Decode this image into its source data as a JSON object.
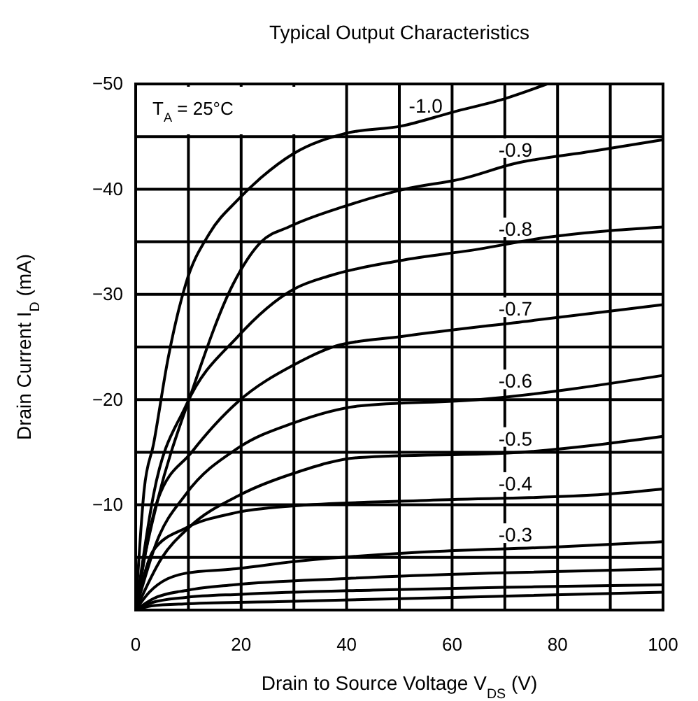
{
  "chart_data": {
    "type": "line",
    "title": "Typical Output Characteristics",
    "xlabel": "Drain to Source Voltage V$_{DS}$ (V)",
    "ylabel": "Drain Current I$_{D}$ (mA)",
    "annotations": [
      "T$_{A}$ = 25°C"
    ],
    "xlim": [
      0,
      100
    ],
    "xticks": [
      0,
      {
        "value": 10,
        "label": null
      },
      20,
      {
        "value": 30,
        "label": null
      },
      40,
      {
        "value": 50,
        "label": null
      },
      60,
      {
        "value": 70,
        "label": null
      },
      80,
      {
        "value": 90,
        "label": null
      },
      100
    ],
    "ylim": [
      0,
      -50
    ],
    "yticks": [
      {
        "value": 0,
        "label": null
      },
      {
        "value": -5,
        "label": null
      },
      -10,
      {
        "value": -15,
        "label": null
      },
      -20,
      {
        "value": -25,
        "label": null
      },
      -30,
      {
        "value": -35,
        "label": null
      },
      -40,
      {
        "value": -45,
        "label": null
      },
      -50
    ],
    "grid": true,
    "legend": false,
    "marker": "none",
    "line_style": "solid",
    "series": [
      {
        "name": "-1.0",
        "color": "#000000",
        "x": [
          0,
          1.6,
          3.4,
          6.1,
          9.5,
          14,
          19.4,
          23.8,
          30,
          39.8,
          50.4,
          60,
          70.6,
          78
        ],
        "values": [
          0,
          -11.4,
          -15.8,
          -23.8,
          -31,
          -35.8,
          -39,
          -41.1,
          -43.4,
          -45.3,
          -46,
          -47.3,
          -48.7,
          -50
        ]
      },
      {
        "name": "-0.9",
        "color": "#000000",
        "x": [
          0,
          1.5,
          4.2,
          10.6,
          18.5,
          23.8,
          29,
          39.8,
          51,
          62,
          71.6,
          86.5,
          100
        ],
        "values": [
          0,
          -4.5,
          -10.5,
          -20.7,
          -31,
          -35,
          -36.4,
          -38.4,
          -40,
          -41,
          -42.4,
          -43.6,
          -44.7
        ]
      },
      {
        "name": "-0.8",
        "color": "#000000",
        "x": [
          0,
          3.4,
          9.5,
          19.4,
          30,
          37,
          50,
          65,
          77.7,
          100
        ],
        "values": [
          0,
          -11,
          -19.4,
          -26,
          -30.5,
          -31.8,
          -33.2,
          -34.3,
          -35.4,
          -36.4
        ]
      },
      {
        "name": "-0.7",
        "color": "#000000",
        "x": [
          0,
          4.2,
          10.6,
          19.4,
          30,
          38,
          50.4,
          75,
          99.7
        ],
        "values": [
          0,
          -10.5,
          -15,
          -19.8,
          -23.3,
          -25.1,
          -26,
          -27.5,
          -29
        ]
      },
      {
        "name": "-0.6",
        "color": "#000000",
        "x": [
          0,
          4,
          9.5,
          19.4,
          30,
          42.4,
          65,
          100
        ],
        "values": [
          0,
          -6.5,
          -11,
          -15.4,
          -17.8,
          -19.4,
          -20,
          -22.3
        ]
      },
      {
        "name": "-0.5",
        "color": "#000000",
        "x": [
          0,
          5,
          10,
          20,
          30,
          42.4,
          73,
          100
        ],
        "values": [
          0,
          -5,
          -7.8,
          -11,
          -13,
          -14.5,
          -15,
          -16.5
        ]
      },
      {
        "name": "-0.4",
        "color": "#000000",
        "x": [
          0,
          3.4,
          9.5,
          18.5,
          30,
          54,
          89,
          100
        ],
        "values": [
          0,
          -5.7,
          -7.8,
          -9.2,
          -9.9,
          -10.4,
          -11,
          -11.5
        ]
      },
      {
        "name": "-0.3",
        "color": "#000000",
        "x": [
          0,
          2.6,
          9.5,
          18.5,
          30,
          54,
          80,
          100
        ],
        "values": [
          0,
          -1.7,
          -3.5,
          -3.9,
          -4.6,
          -5.5,
          -6,
          -6.5
        ]
      },
      {
        "color": "#000000",
        "x": [
          0,
          3.4,
          10,
          18.5,
          40,
          67,
          100
        ],
        "values": [
          0,
          -1.1,
          -1.9,
          -2.4,
          -3,
          -3.5,
          -3.9
        ]
      },
      {
        "color": "#000000",
        "x": [
          0,
          3,
          9.5,
          20,
          45,
          75,
          100
        ],
        "values": [
          0,
          -0.7,
          -1.2,
          -1.5,
          -1.9,
          -2.2,
          -2.4
        ]
      },
      {
        "color": "#000000",
        "x": [
          0,
          3,
          10,
          27,
          60,
          100
        ],
        "values": [
          0,
          -0.4,
          -0.6,
          -0.8,
          -1.2,
          -1.7
        ]
      }
    ]
  }
}
